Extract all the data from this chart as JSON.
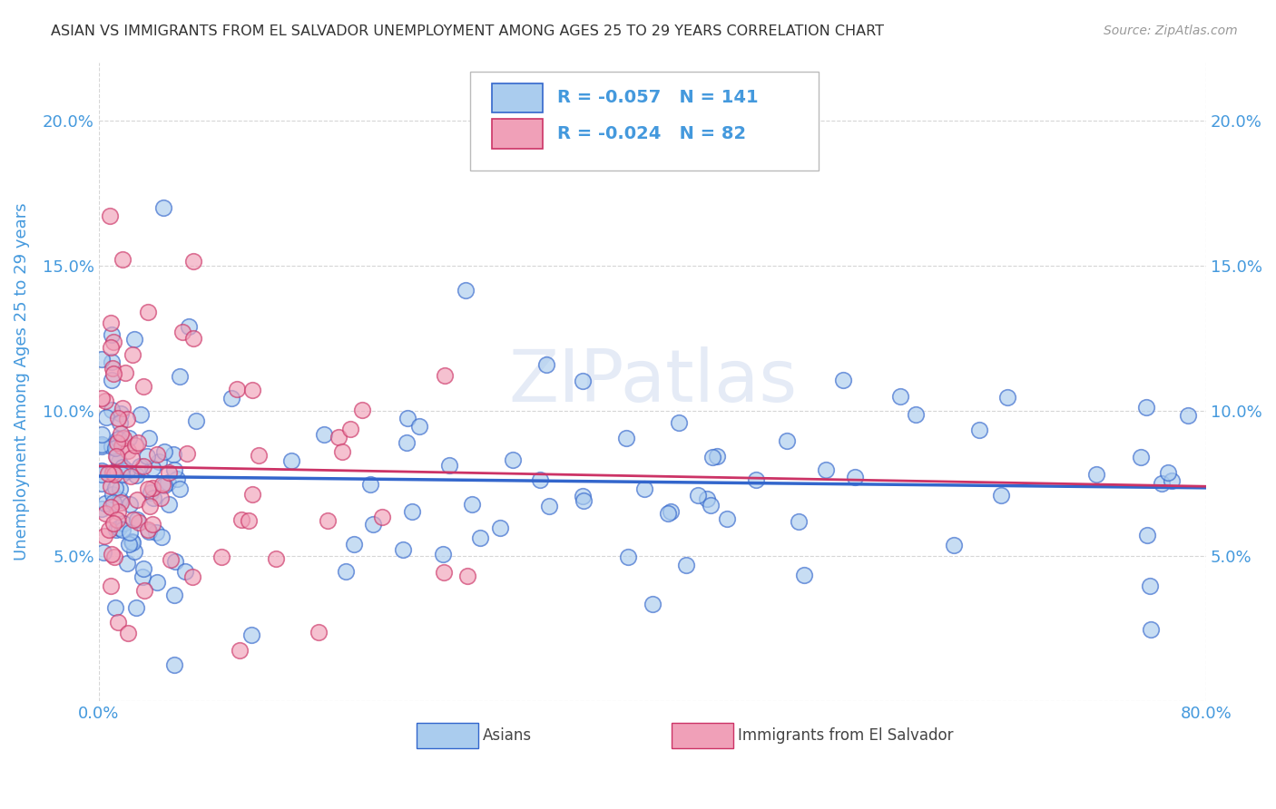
{
  "title": "ASIAN VS IMMIGRANTS FROM EL SALVADOR UNEMPLOYMENT AMONG AGES 25 TO 29 YEARS CORRELATION CHART",
  "source": "Source: ZipAtlas.com",
  "ylabel": "Unemployment Among Ages 25 to 29 years",
  "xlim": [
    0.0,
    0.8
  ],
  "ylim": [
    0.0,
    0.22
  ],
  "ytick_values": [
    0.0,
    0.05,
    0.1,
    0.15,
    0.2
  ],
  "ytick_labels": [
    "",
    "5.0%",
    "10.0%",
    "15.0%",
    "20.0%"
  ],
  "xtick_values": [
    0.0,
    0.8
  ],
  "xtick_labels": [
    "0.0%",
    "80.0%"
  ],
  "background_color": "#ffffff",
  "watermark": "ZIPatlas",
  "asian_color": "#aaccee",
  "salvador_color": "#f0a0b8",
  "asian_line_color": "#3366cc",
  "salvador_line_color": "#cc3366",
  "asian_R": -0.057,
  "asian_N": 141,
  "salvador_R": -0.024,
  "salvador_N": 82,
  "title_color": "#333333",
  "axis_label_color": "#4499dd",
  "legend_R_color": "#4499dd",
  "grid_color": "#cccccc",
  "asian_line_y0": 0.0775,
  "asian_line_y1": 0.0735,
  "salvador_line_y0": 0.081,
  "salvador_line_y1": 0.074
}
